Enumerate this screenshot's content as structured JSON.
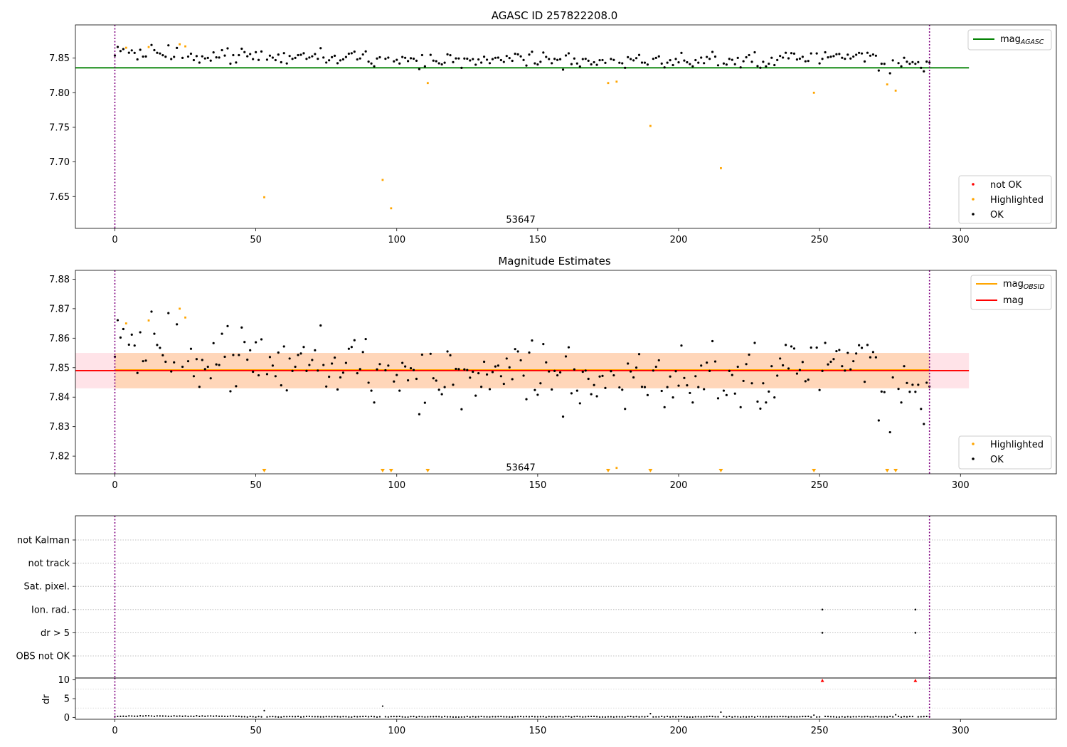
{
  "chart_data": [
    {
      "type": "scatter",
      "title": "AGASC ID 257822208.0",
      "xlim": [
        -14,
        334
      ],
      "ylim": [
        7.604,
        7.898
      ],
      "xticks": [
        0,
        50,
        100,
        150,
        200,
        250,
        300
      ],
      "yticks": [
        7.65,
        7.7,
        7.75,
        7.8,
        7.85
      ],
      "ytick_labels": [
        "7.65",
        "7.70",
        "7.75",
        "7.80",
        "7.85"
      ],
      "vlines": [
        0,
        289
      ],
      "annotation": {
        "text": "53647",
        "x": 144,
        "y": 7.612
      },
      "reference_line": {
        "label": "mag",
        "label_sub": "AGASC",
        "value": 7.836,
        "x_range": [
          -14,
          303
        ],
        "color": "#008000"
      },
      "legend_lines": [
        {
          "label": "mag",
          "label_sub": "AGASC",
          "color": "#008000"
        }
      ],
      "legend_points": [
        {
          "label": "not OK",
          "color": "#ff0000"
        },
        {
          "label": "Highlighted",
          "color": "#ffa500"
        },
        {
          "label": "OK",
          "color": "#000000"
        }
      ],
      "highlighted_points": [
        [
          4,
          7.865
        ],
        [
          12,
          7.866
        ],
        [
          23,
          7.87
        ],
        [
          25,
          7.867
        ],
        [
          53,
          7.649
        ],
        [
          95,
          7.674
        ],
        [
          98,
          7.633
        ],
        [
          111,
          7.814
        ],
        [
          175,
          7.814
        ],
        [
          178,
          7.816
        ],
        [
          190,
          7.752
        ],
        [
          215,
          7.691
        ],
        [
          248,
          7.8
        ],
        [
          274,
          7.812
        ],
        [
          277,
          7.803
        ]
      ]
    },
    {
      "type": "scatter",
      "title": "Magnitude Estimates",
      "xlim": [
        -14,
        334
      ],
      "ylim": [
        7.814,
        7.883
      ],
      "xticks": [
        0,
        50,
        100,
        150,
        200,
        250,
        300
      ],
      "yticks": [
        7.82,
        7.83,
        7.84,
        7.85,
        7.86,
        7.87,
        7.88
      ],
      "ytick_labels": [
        "7.82",
        "7.83",
        "7.84",
        "7.85",
        "7.86",
        "7.87",
        "7.88"
      ],
      "vlines": [
        0,
        289
      ],
      "annotation": {
        "text": "53647",
        "x": 144,
        "y": 7.816
      },
      "mag_line": {
        "label": "mag",
        "value": 7.849,
        "x_range": [
          -14,
          303
        ],
        "color": "#ff0000"
      },
      "obsid_line": {
        "label": "mag",
        "label_sub": "OBSID",
        "value": 7.849,
        "x_range": [
          0,
          289
        ],
        "color": "#ffa500"
      },
      "band_outer": {
        "y_range": [
          7.843,
          7.855
        ],
        "x_range": [
          -14,
          303
        ],
        "color": "#ffc0cb"
      },
      "band_inner": {
        "y_range": [
          7.843,
          7.855
        ],
        "x_range": [
          0,
          289
        ],
        "color": "#ffa500"
      },
      "legend_lines": [
        {
          "label": "mag",
          "label_sub": "OBSID",
          "color": "#ffa500"
        },
        {
          "label": "mag",
          "color": "#ff0000"
        }
      ],
      "legend_points": [
        {
          "label": "Highlighted",
          "color": "#ffa500"
        },
        {
          "label": "OK",
          "color": "#000000"
        }
      ],
      "highlighted_points": [
        [
          4,
          7.865
        ],
        [
          12,
          7.866
        ],
        [
          23,
          7.87
        ],
        [
          25,
          7.867
        ],
        [
          178,
          7.816
        ]
      ],
      "off_scale_markers": [
        53,
        95,
        98,
        111,
        175,
        190,
        215,
        248,
        274,
        277
      ]
    },
    {
      "type": "scatter",
      "title": "",
      "xlim": [
        -14,
        334
      ],
      "categories": [
        "not Kalman",
        "not track",
        "Sat. pixel.",
        "Ion. rad.",
        "dr > 5",
        "OBS not OK"
      ],
      "flag_points": [
        {
          "category": "Ion. rad.",
          "x": [
            251,
            284
          ]
        },
        {
          "category": "dr > 5",
          "x": [
            251,
            284
          ]
        }
      ],
      "vlines": [
        0,
        289
      ]
    },
    {
      "type": "scatter",
      "title": "",
      "ylabel": "dr",
      "xlim": [
        -14,
        334
      ],
      "ylim": [
        -0.5,
        10.5
      ],
      "xticks": [
        0,
        50,
        100,
        150,
        200,
        250,
        300
      ],
      "yticks": [
        0,
        5,
        10
      ],
      "ytick_labels": [
        "0",
        "5",
        "10"
      ],
      "vlines": [
        0,
        289
      ],
      "clipped_markers": [
        251,
        284
      ],
      "spike_points": [
        [
          53,
          1.8
        ],
        [
          95,
          3.0
        ],
        [
          190,
          1.0
        ],
        [
          215,
          1.4
        ],
        [
          248,
          0.6
        ],
        [
          277,
          0.7
        ]
      ]
    }
  ]
}
